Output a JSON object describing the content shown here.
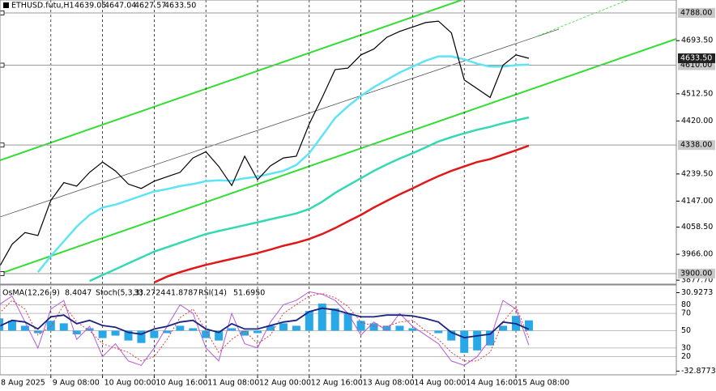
{
  "chart_data": {
    "type": "line",
    "header": {
      "symbol": "ETHUSD.futu,H1",
      "open": "4639.05",
      "high": "4647.04",
      "low": "4627.57",
      "close": "4633.50"
    },
    "categories": [
      "8 Aug 2025",
      null,
      null,
      null,
      "9 Aug 08:00",
      null,
      null,
      null,
      "10 Aug 00:00",
      null,
      null,
      null,
      "10 Aug 16:00",
      null,
      null,
      null,
      "11 Aug 08:00",
      null,
      null,
      null,
      "12 Aug 00:00",
      null,
      null,
      null,
      "12 Aug 16:00",
      null,
      null,
      null,
      "13 Aug 08:00",
      null,
      null,
      null,
      "14 Aug 00:00",
      null,
      null,
      null,
      "14 Aug 16:00",
      null,
      null,
      null,
      "15 Aug 08:00",
      null,
      null,
      null,
      null,
      null,
      null,
      null,
      null,
      null,
      null,
      null
    ],
    "series": [
      {
        "color": "#000000",
        "values": [
          3922,
          4000,
          4040,
          4030,
          4150,
          4210,
          4198,
          4245,
          4280,
          4250,
          4205,
          4190,
          4215,
          4230,
          4245,
          4294,
          4315,
          4265,
          4200,
          4300,
          4220,
          4267,
          4294,
          4300,
          4410,
          4500,
          4595,
          4600,
          4645,
          4665,
          4705,
          4725,
          4740,
          4755,
          4760,
          4720,
          4560,
          4530,
          4500,
          4610,
          4645,
          4633.5,
          null,
          null,
          null,
          null,
          null,
          null,
          null,
          null,
          null,
          null
        ]
      },
      {
        "color": "#5fe3f7",
        "values": [
          null,
          null,
          null,
          3905,
          3960,
          4010,
          4060,
          4100,
          4125,
          4135,
          4150,
          4165,
          4180,
          4188,
          4198,
          4205,
          4215,
          4218,
          4216,
          4225,
          4230,
          4240,
          4250,
          4270,
          4310,
          4370,
          4430,
          4470,
          4505,
          4535,
          4560,
          4585,
          4605,
          4625,
          4640,
          4640,
          4630,
          4615,
          4605,
          4605,
          4610,
          4612,
          null,
          null,
          null,
          null,
          null,
          null,
          null,
          null,
          null,
          null
        ]
      },
      {
        "color": "#33d9b2",
        "values": [
          null,
          null,
          null,
          null,
          null,
          null,
          null,
          3875,
          3895,
          3915,
          3935,
          3955,
          3975,
          3990,
          4005,
          4020,
          4035,
          4045,
          4055,
          4065,
          4075,
          4085,
          4095,
          4105,
          4120,
          4145,
          4175,
          4200,
          4225,
          4250,
          4272,
          4292,
          4310,
          4330,
          4350,
          4365,
          4378,
          4390,
          4400,
          4412,
          4422,
          4432,
          null,
          null,
          null,
          null,
          null,
          null,
          null,
          null,
          null,
          null
        ]
      },
      {
        "color": "#e01818",
        "values": [
          null,
          null,
          null,
          null,
          null,
          null,
          null,
          null,
          null,
          null,
          null,
          null,
          3870,
          3890,
          3905,
          3918,
          3930,
          3940,
          3950,
          3960,
          3970,
          3982,
          3995,
          4005,
          4018,
          4035,
          4055,
          4078,
          4100,
          4125,
          4148,
          4170,
          4190,
          4212,
          4232,
          4250,
          4265,
          4280,
          4290,
          4305,
          4320,
          4336,
          null,
          null,
          null,
          null,
          null,
          null,
          null,
          null,
          null,
          null
        ]
      }
    ],
    "ylim": [
      3867,
      4832
    ],
    "yticks": [
      {
        "value": 4693.5,
        "label": "4693.50"
      },
      {
        "value": 4512.5,
        "label": "4512.50"
      },
      {
        "value": 4420,
        "label": "4420.00"
      },
      {
        "value": 4239.5,
        "label": "4239.50"
      },
      {
        "value": 4147,
        "label": "4147.00"
      },
      {
        "value": 4058.5,
        "label": "4058.50"
      },
      {
        "value": 3966,
        "label": "3966.00"
      },
      {
        "value": 3877.7,
        "label": "3877.70"
      }
    ],
    "levels": [
      {
        "value": 4788,
        "label": "4788.00"
      },
      {
        "value": 4610,
        "label": "4610.00"
      },
      {
        "value": 4338,
        "label": "4338.00"
      },
      {
        "value": 3900,
        "label": "3900.00"
      }
    ],
    "lower": {
      "header": [
        "OsMA(12,26,9)",
        "8.4047",
        "Stoch(5,3,3)",
        "33.2724",
        "41.8787",
        "RSI(14)",
        "51.6950"
      ],
      "ylim": [
        0,
        100
      ],
      "yticks": [
        80,
        70,
        50,
        30,
        20
      ],
      "y2lim": [
        -35.2,
        35.2
      ],
      "y2ticks": [
        30.9273,
        -32.8773
      ],
      "series": [
        {
          "type": "bar",
          "axis": "y2",
          "color": "#29a8e8",
          "values": [
            10,
            8,
            4,
            -2,
            8,
            6,
            -3,
            2,
            -6,
            -4,
            -8,
            -10,
            -6,
            -2,
            4,
            2,
            -6,
            -8,
            2,
            -4,
            -2,
            4,
            6,
            4,
            16,
            22,
            18,
            14,
            8,
            6,
            4,
            4,
            2,
            0,
            -2,
            -8,
            -18,
            -16,
            -12,
            4,
            12,
            8.4047,
            null,
            null,
            null,
            null,
            null,
            null,
            null,
            null,
            null,
            null
          ]
        },
        {
          "type": "line",
          "color": "#b45cd6",
          "values": [
            80,
            90,
            60,
            30,
            75,
            85,
            40,
            55,
            20,
            35,
            15,
            10,
            30,
            55,
            80,
            70,
            30,
            15,
            70,
            35,
            30,
            60,
            80,
            85,
            95,
            92,
            85,
            70,
            45,
            60,
            50,
            70,
            55,
            45,
            35,
            15,
            10,
            20,
            40,
            85,
            75,
            33.2724,
            null,
            null,
            null,
            null,
            null,
            null,
            null,
            null,
            null,
            null
          ]
        },
        {
          "type": "line",
          "color": "#e23c3c",
          "values": [
            70,
            85,
            75,
            45,
            55,
            80,
            60,
            50,
            35,
            30,
            25,
            15,
            20,
            40,
            65,
            75,
            50,
            25,
            40,
            50,
            35,
            45,
            70,
            80,
            90,
            93,
            88,
            78,
            60,
            55,
            55,
            60,
            62,
            50,
            40,
            25,
            15,
            15,
            25,
            60,
            78,
            41.8787,
            null,
            null,
            null,
            null,
            null,
            null,
            null,
            null,
            null,
            null
          ]
        },
        {
          "type": "line",
          "color": "#1a237e",
          "values": [
            55,
            62,
            60,
            52,
            66,
            68,
            58,
            62,
            56,
            54,
            48,
            46,
            52,
            55,
            60,
            62,
            52,
            48,
            58,
            52,
            52,
            56,
            60,
            62,
            72,
            76,
            74,
            70,
            66,
            66,
            68,
            68,
            67,
            64,
            60,
            48,
            42,
            44,
            46,
            60,
            58,
            51.695,
            null,
            null,
            null,
            null,
            null,
            null,
            null,
            null,
            null,
            null
          ]
        }
      ]
    }
  }
}
